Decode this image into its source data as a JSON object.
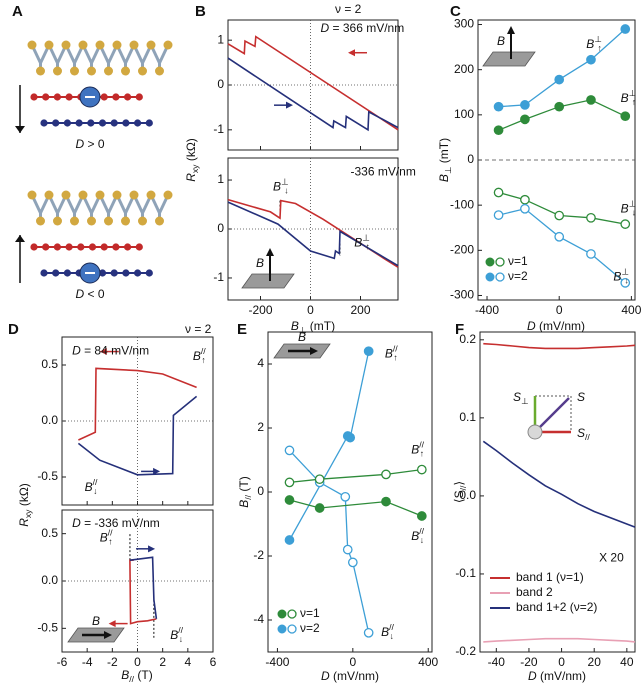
{
  "diagram_a": {
    "panel": "A",
    "captions": [
      [
        "D",
        " > 0"
      ],
      [
        "D",
        " < 0"
      ]
    ]
  },
  "chart_data": [
    {
      "type": "line",
      "panel": "B",
      "header": "ν = 2",
      "xlim": [
        -330,
        350
      ],
      "xticks": [
        -200,
        0,
        200
      ],
      "xtick_labels": false,
      "ylim": [
        -1.45,
        1.45
      ],
      "yticks": [
        -1,
        0,
        1
      ],
      "zero_lines": [
        "x",
        "y"
      ],
      "ylabel": [
        "R",
        {
          "sub": "xy"
        },
        " (kΩ)"
      ],
      "annotations": [
        {
          "text": [
            "D",
            " = 366 mV/nm"
          ],
          "color": "#111111"
        }
      ],
      "series": [
        {
          "color": "#c62f2f",
          "x": [
            -330,
            -265,
            -262,
            -222,
            -219,
            350
          ],
          "values": [
            0.92,
            0.7,
            0.98,
            0.86,
            1.08,
            -1.0
          ]
        },
        {
          "color": "#25307a",
          "x": [
            -330,
            -100,
            90,
            93,
            140,
            143,
            230,
            233,
            350
          ],
          "values": [
            0.6,
            -0.25,
            -0.95,
            -0.8,
            -0.95,
            -0.7,
            -1.0,
            -0.6,
            -0.95
          ]
        }
      ]
    },
    {
      "type": "line",
      "xlim": [
        -330,
        350
      ],
      "xticks": [
        -200,
        0,
        200
      ],
      "ylim": [
        -1.45,
        1.45
      ],
      "yticks": [
        -1,
        0,
        1
      ],
      "zero_lines": [
        "x",
        "y"
      ],
      "xlabel": [
        "B",
        {
          "sub": "⊥"
        },
        " (mT)"
      ],
      "inset_label": "B",
      "annotations": [
        {
          "text": [
            "-336 mV/nm"
          ],
          "color": "#111111"
        },
        {
          "text": [
            "B",
            {
              "sup": "⊥"
            },
            {
              "sub": "↓"
            }
          ],
          "color": "#25307a"
        },
        {
          "text": [
            "B",
            {
              "sup": "⊥"
            },
            {
              "sub": "↑"
            }
          ],
          "color": "#25307a"
        }
      ],
      "series": [
        {
          "color": "#c62f2f",
          "x": [
            -330,
            -160,
            -122,
            -119,
            -60,
            50,
            300,
            350
          ],
          "values": [
            0.6,
            0.35,
            0.22,
            0.58,
            0.52,
            0.2,
            -0.62,
            -0.78
          ]
        },
        {
          "color": "#25307a",
          "x": [
            -330,
            -130,
            0,
            95,
            100,
            115,
            118,
            350
          ],
          "values": [
            0.55,
            0.1,
            -0.45,
            -0.6,
            -0.45,
            -0.5,
            -0.05,
            -0.75
          ]
        }
      ]
    },
    {
      "type": "line",
      "panel": "C",
      "xlim": [
        -450,
        420
      ],
      "xticks": [
        -400,
        0,
        400
      ],
      "ylim": [
        -310,
        310
      ],
      "yticks": [
        -300,
        -200,
        -100,
        0,
        100,
        200,
        300
      ],
      "zero_lines": [
        "y"
      ],
      "ylabel": [
        "B",
        {
          "sub": "⊥"
        },
        " (mT)"
      ],
      "xlabel": [
        "D",
        " (mV/nm)"
      ],
      "inset_label": "B",
      "annotations": [
        {
          "text": [
            "B",
            {
              "sup": "⊥"
            },
            {
              "sub": "↑"
            }
          ],
          "color": "#3d9fd6"
        },
        {
          "text": [
            "B",
            {
              "sup": "⊥"
            },
            {
              "sub": "↑"
            }
          ],
          "color": "#2e8b3a"
        },
        {
          "text": [
            "B",
            {
              "sup": "⊥"
            },
            {
              "sub": "↓"
            }
          ],
          "color": "#2e8b3a"
        },
        {
          "text": [
            "B",
            {
              "sup": "⊥"
            },
            {
              "sub": "↓"
            }
          ],
          "color": "#3d9fd6"
        }
      ],
      "legend": [
        {
          "label": "ν=1",
          "color": "#2e8b3a"
        },
        {
          "label": "ν=2",
          "color": "#3d9fd6"
        }
      ],
      "series": [
        {
          "color": "#3d9fd6",
          "marker": "filled",
          "x": [
            -336,
            -190,
            0,
            176,
            366
          ],
          "values": [
            118,
            122,
            178,
            222,
            290
          ]
        },
        {
          "color": "#2e8b3a",
          "marker": "filled",
          "x": [
            -336,
            -190,
            0,
            176,
            366
          ],
          "values": [
            66,
            90,
            118,
            133,
            97
          ]
        },
        {
          "color": "#2e8b3a",
          "marker": "open",
          "x": [
            -336,
            -190,
            0,
            176,
            366
          ],
          "values": [
            -72,
            -88,
            -123,
            -128,
            -142
          ]
        },
        {
          "color": "#3d9fd6",
          "marker": "open",
          "x": [
            -336,
            -190,
            0,
            176,
            366
          ],
          "values": [
            -122,
            -108,
            -170,
            -208,
            -272
          ]
        }
      ]
    },
    {
      "type": "line",
      "panel": "D",
      "header": "ν = 2",
      "xlim": [
        -6,
        6
      ],
      "xticks": [
        -6,
        -4,
        -2,
        0,
        2,
        4,
        6
      ],
      "xtick_labels": false,
      "ylim": [
        -0.75,
        0.75
      ],
      "yticks": [
        -0.5,
        {
          "value": 0,
          "label": "0.0"
        },
        0.5
      ],
      "zero_lines": [
        "x",
        "y"
      ],
      "ylabel": [
        "R",
        {
          "sub": "xy"
        },
        " (kΩ)"
      ],
      "annotations": [
        {
          "text": [
            "D",
            " = 84 mV/nm"
          ],
          "color": "#111111"
        },
        {
          "text": [
            "B",
            {
              "sup": "//"
            },
            {
              "sub": "↑"
            }
          ],
          "color": "#25307a"
        },
        {
          "text": [
            "B",
            {
              "sup": "//"
            },
            {
              "sub": "↓"
            }
          ],
          "color": "#25307a"
        }
      ],
      "series": [
        {
          "color": "#c62f2f",
          "x": [
            4.7,
            2,
            0,
            -3.3,
            -3.35,
            -4.7
          ],
          "values": [
            0.3,
            0.42,
            0.45,
            0.47,
            -0.1,
            -0.17
          ]
        },
        {
          "color": "#25307a",
          "x": [
            -4.7,
            -3,
            0,
            2.8,
            2.85,
            4.7
          ],
          "values": [
            -0.2,
            -0.35,
            -0.48,
            -0.47,
            0.05,
            0.22
          ]
        }
      ]
    },
    {
      "type": "line",
      "xlim": [
        -6,
        6
      ],
      "xticks": [
        -6,
        -4,
        -2,
        0,
        2,
        4,
        6
      ],
      "ylim": [
        -0.75,
        0.75
      ],
      "yticks": [
        -0.5,
        {
          "value": 0,
          "label": "0.0"
        },
        0.5
      ],
      "zero_lines": [
        "x",
        "y"
      ],
      "xlabel": [
        "B",
        {
          "sub": "//"
        },
        " (T)"
      ],
      "inset_label": "B",
      "annotations": [
        {
          "text": [
            "D",
            " = -336 mV/nm"
          ],
          "color": "#111111"
        },
        {
          "text": [
            "B",
            {
              "sup": "//"
            },
            {
              "sub": "↑"
            }
          ],
          "color": "#25307a"
        },
        {
          "text": [
            "B",
            {
              "sup": "//"
            },
            {
              "sub": "↓"
            }
          ],
          "color": "#25307a"
        }
      ],
      "series": [
        {
          "color": "#c62f2f",
          "x": [
            1.5,
            0.8,
            0,
            -0.55,
            -0.6,
            -0.3
          ],
          "values": [
            -0.4,
            -0.42,
            -0.43,
            -0.45,
            0.22,
            0.22
          ]
        },
        {
          "color": "#25307a",
          "x": [
            -0.6,
            1.2,
            1.3,
            1.5
          ],
          "values": [
            0.22,
            0.25,
            -0.2,
            -0.4
          ]
        }
      ]
    },
    {
      "type": "line",
      "panel": "E",
      "xlim": [
        -450,
        420
      ],
      "xticks": [
        -400,
        0,
        400
      ],
      "ylim": [
        -5,
        5
      ],
      "yticks": [
        -4,
        -2,
        0,
        2,
        4
      ],
      "ylabel": [
        "B",
        {
          "sub": "//"
        },
        " (T)"
      ],
      "xlabel": [
        "D",
        " (mV/nm)"
      ],
      "inset_label": "B",
      "annotations": [
        {
          "text": [
            "B",
            {
              "sup": "//"
            },
            {
              "sub": "↑"
            }
          ],
          "color": "#3d9fd6"
        },
        {
          "text": [
            "B",
            {
              "sup": "//"
            },
            {
              "sub": "↑"
            }
          ],
          "color": "#2e8b3a"
        },
        {
          "text": [
            "B",
            {
              "sup": "//"
            },
            {
              "sub": "↓"
            }
          ],
          "color": "#2e8b3a"
        },
        {
          "text": [
            "B",
            {
              "sup": "//"
            },
            {
              "sub": "↓"
            }
          ],
          "color": "#3d9fd6"
        }
      ],
      "legend": [
        {
          "label": "ν=1",
          "color": "#2e8b3a"
        },
        {
          "label": "ν=2",
          "color": "#3d9fd6"
        }
      ],
      "series": [
        {
          "color": "#3d9fd6",
          "marker": "filled",
          "x": [
            -336,
            -27,
            -14,
            84
          ],
          "values": [
            -1.5,
            1.75,
            1.7,
            4.4
          ]
        },
        {
          "color": "#3d9fd6",
          "marker": "open",
          "x": [
            -336,
            -176,
            -40,
            -27,
            0,
            84
          ],
          "values": [
            1.3,
            0.3,
            -0.15,
            -1.8,
            -2.2,
            -4.4
          ]
        },
        {
          "color": "#2e8b3a",
          "marker": "open",
          "x": [
            -336,
            -176,
            176,
            366
          ],
          "values": [
            0.3,
            0.4,
            0.55,
            0.7
          ]
        },
        {
          "color": "#2e8b3a",
          "marker": "filled",
          "x": [
            -336,
            -176,
            176,
            366
          ],
          "values": [
            -0.25,
            -0.5,
            -0.3,
            -0.75
          ]
        }
      ]
    },
    {
      "type": "line",
      "panel": "F",
      "xlim": [
        -50,
        45
      ],
      "xticks": [
        -40,
        -20,
        0,
        20,
        40
      ],
      "ylim": [
        -0.2,
        0.21
      ],
      "yticks": [
        -0.2,
        -0.1,
        {
          "value": 0,
          "label": "0.0"
        },
        0.1,
        0.2
      ],
      "ylabel": [
        "⟨S",
        {
          "sub": "//"
        },
        "⟩"
      ],
      "xlabel": [
        "D",
        " (mV/nm)"
      ],
      "annotations": [
        {
          "text": [
            "X 20"
          ],
          "color": "#25307a"
        }
      ],
      "inset_labels": [
        [
          "S",
          {
            "sub": "⊥"
          }
        ],
        [
          "S"
        ],
        [
          "S",
          {
            "sub": "//"
          }
        ]
      ],
      "series": [
        {
          "name": "band 1 (ν=1)",
          "color": "#c62f2f",
          "x": [
            -48,
            -40,
            -30,
            -20,
            -10,
            0,
            10,
            20,
            30,
            40,
            45
          ],
          "values": [
            0.195,
            0.194,
            0.192,
            0.19,
            0.189,
            0.189,
            0.189,
            0.19,
            0.191,
            0.192,
            0.193
          ]
        },
        {
          "name": "band 2",
          "color": "#e8a0b4",
          "x": [
            -48,
            -40,
            -30,
            -20,
            -10,
            0,
            10,
            20,
            30,
            40,
            45
          ],
          "values": [
            -0.187,
            -0.186,
            -0.185,
            -0.184,
            -0.183,
            -0.183,
            -0.183,
            -0.184,
            -0.185,
            -0.186,
            -0.187
          ]
        },
        {
          "name": "band 1+2 (ν=2)",
          "color": "#25307a",
          "x": [
            -48,
            -40,
            -30,
            -20,
            -10,
            0,
            10,
            20,
            30,
            40,
            45
          ],
          "values": [
            0.07,
            0.058,
            0.042,
            0.027,
            0.013,
            0.002,
            -0.01,
            -0.02,
            -0.028,
            -0.036,
            -0.04
          ]
        }
      ]
    }
  ]
}
